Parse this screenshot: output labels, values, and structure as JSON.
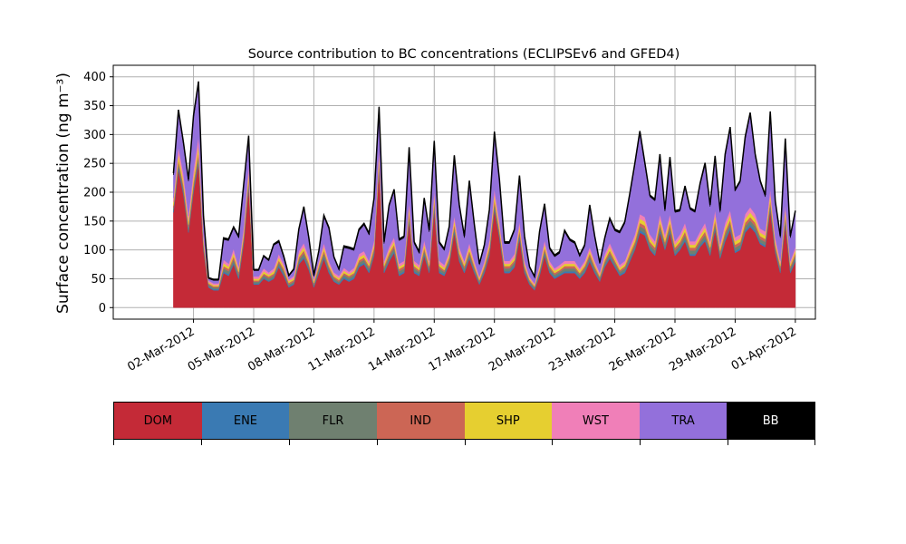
{
  "chart_data": {
    "type": "area",
    "stacked": true,
    "title": "Source contribution to BC concentrations (ECLIPSEv6 and GFED4)",
    "ylabel": "Surface concentration (ng m⁻³)",
    "ylim": [
      -20,
      420
    ],
    "yticks": [
      0,
      50,
      100,
      150,
      200,
      250,
      300,
      350,
      400
    ],
    "xlim": [
      "2012-02-27",
      "2012-04-02"
    ],
    "xticks": [
      "2012-03-02",
      "2012-03-05",
      "2012-03-08",
      "2012-03-11",
      "2012-03-14",
      "2012-03-17",
      "2012-03-20",
      "2012-03-23",
      "2012-03-26",
      "2012-03-29",
      "2012-04-01"
    ],
    "xticklabels": [
      "02-Mar-2012",
      "05-Mar-2012",
      "08-Mar-2012",
      "11-Mar-2012",
      "14-Mar-2012",
      "17-Mar-2012",
      "20-Mar-2012",
      "23-Mar-2012",
      "26-Mar-2012",
      "29-Mar-2012",
      "01-Apr-2012"
    ],
    "grid": true,
    "legend_placement": "colorbar below plot",
    "x": [
      "2012-03-01 00:00",
      "2012-03-01 06:00",
      "2012-03-01 12:00",
      "2012-03-01 18:00",
      "2012-03-02 00:00",
      "2012-03-02 06:00",
      "2012-03-02 12:00",
      "2012-03-02 18:00",
      "2012-03-03 00:00",
      "2012-03-03 06:00",
      "2012-03-03 12:00",
      "2012-03-03 18:00",
      "2012-03-04 00:00",
      "2012-03-04 06:00",
      "2012-03-04 12:00",
      "2012-03-04 18:00",
      "2012-03-05 00:00",
      "2012-03-05 06:00",
      "2012-03-05 12:00",
      "2012-03-05 18:00",
      "2012-03-06 00:00",
      "2012-03-06 06:00",
      "2012-03-06 12:00",
      "2012-03-06 18:00",
      "2012-03-07 00:00",
      "2012-03-07 06:00",
      "2012-03-07 12:00",
      "2012-03-07 18:00",
      "2012-03-08 00:00",
      "2012-03-08 06:00",
      "2012-03-08 12:00",
      "2012-03-08 18:00",
      "2012-03-09 00:00",
      "2012-03-09 06:00",
      "2012-03-09 12:00",
      "2012-03-09 18:00",
      "2012-03-10 00:00",
      "2012-03-10 06:00",
      "2012-03-10 12:00",
      "2012-03-10 18:00",
      "2012-03-11 00:00",
      "2012-03-11 06:00",
      "2012-03-11 12:00",
      "2012-03-11 18:00",
      "2012-03-12 00:00",
      "2012-03-12 06:00",
      "2012-03-12 12:00",
      "2012-03-12 18:00",
      "2012-03-13 00:00",
      "2012-03-13 06:00",
      "2012-03-13 12:00",
      "2012-03-13 18:00",
      "2012-03-14 00:00",
      "2012-03-14 06:00",
      "2012-03-14 12:00",
      "2012-03-14 18:00",
      "2012-03-15 00:00",
      "2012-03-15 06:00",
      "2012-03-15 12:00",
      "2012-03-15 18:00",
      "2012-03-16 00:00",
      "2012-03-16 06:00",
      "2012-03-16 12:00",
      "2012-03-16 18:00",
      "2012-03-17 00:00",
      "2012-03-17 06:00",
      "2012-03-17 12:00",
      "2012-03-17 18:00",
      "2012-03-18 00:00",
      "2012-03-18 06:00",
      "2012-03-18 12:00",
      "2012-03-18 18:00",
      "2012-03-19 00:00",
      "2012-03-19 06:00",
      "2012-03-19 12:00",
      "2012-03-19 18:00",
      "2012-03-20 00:00",
      "2012-03-20 06:00",
      "2012-03-20 12:00",
      "2012-03-20 18:00",
      "2012-03-21 00:00",
      "2012-03-21 06:00",
      "2012-03-21 12:00",
      "2012-03-21 18:00",
      "2012-03-22 00:00",
      "2012-03-22 06:00",
      "2012-03-22 12:00",
      "2012-03-22 18:00",
      "2012-03-23 00:00",
      "2012-03-23 06:00",
      "2012-03-23 12:00",
      "2012-03-23 18:00",
      "2012-03-24 00:00",
      "2012-03-24 06:00",
      "2012-03-24 12:00",
      "2012-03-24 18:00",
      "2012-03-25 00:00",
      "2012-03-25 06:00",
      "2012-03-25 12:00",
      "2012-03-25 18:00",
      "2012-03-26 00:00",
      "2012-03-26 06:00",
      "2012-03-26 12:00",
      "2012-03-26 18:00",
      "2012-03-27 00:00",
      "2012-03-27 06:00",
      "2012-03-27 12:00",
      "2012-03-27 18:00",
      "2012-03-28 00:00",
      "2012-03-28 06:00",
      "2012-03-28 12:00",
      "2012-03-28 18:00",
      "2012-03-29 00:00",
      "2012-03-29 06:00",
      "2012-03-29 12:00",
      "2012-03-29 18:00",
      "2012-03-30 00:00",
      "2012-03-30 06:00",
      "2012-03-30 12:00",
      "2012-03-30 18:00",
      "2012-03-31 00:00",
      "2012-03-31 06:00",
      "2012-03-31 12:00",
      "2012-03-31 18:00",
      "2012-04-01 00:00"
    ],
    "series": [
      {
        "name": "DOM",
        "color": "#c42a37",
        "values": [
          165,
          240,
          195,
          130,
          200,
          250,
          100,
          35,
          30,
          30,
          60,
          55,
          75,
          50,
          110,
          210,
          40,
          40,
          50,
          45,
          50,
          70,
          55,
          35,
          40,
          75,
          85,
          65,
          35,
          60,
          85,
          60,
          45,
          40,
          50,
          45,
          50,
          70,
          75,
          60,
          90,
          240,
          60,
          80,
          95,
          55,
          60,
          150,
          60,
          55,
          90,
          60,
          170,
          60,
          55,
          75,
          130,
          80,
          60,
          85,
          60,
          40,
          60,
          90,
          170,
          120,
          60,
          60,
          70,
          120,
          60,
          40,
          30,
          55,
          90,
          60,
          50,
          55,
          60,
          60,
          60,
          50,
          60,
          80,
          60,
          45,
          70,
          85,
          70,
          55,
          60,
          80,
          100,
          130,
          125,
          100,
          90,
          130,
          100,
          130,
          90,
          100,
          115,
          90,
          90,
          105,
          115,
          90,
          135,
          85,
          115,
          135,
          95,
          100,
          130,
          140,
          130,
          110,
          105,
          170,
          95,
          60,
          145,
          60,
          80
        ]
      },
      {
        "name": "ENE",
        "color": "#3a7ab3",
        "values": [
          3,
          4,
          4,
          3,
          4,
          5,
          3,
          2,
          2,
          2,
          3,
          3,
          3,
          3,
          3,
          4,
          2,
          2,
          2,
          2,
          2,
          3,
          3,
          2,
          2,
          3,
          3,
          3,
          2,
          3,
          3,
          3,
          2,
          2,
          3,
          3,
          3,
          3,
          3,
          3,
          3,
          4,
          3,
          3,
          3,
          3,
          3,
          4,
          3,
          3,
          3,
          3,
          4,
          3,
          3,
          3,
          4,
          3,
          3,
          3,
          3,
          2,
          3,
          3,
          4,
          3,
          3,
          3,
          3,
          4,
          3,
          2,
          2,
          3,
          3,
          3,
          3,
          3,
          3,
          3,
          3,
          3,
          3,
          3,
          3,
          2,
          3,
          3,
          3,
          3,
          3,
          3,
          3,
          4,
          4,
          3,
          3,
          4,
          3,
          4,
          3,
          3,
          4,
          3,
          3,
          3,
          4,
          3,
          4,
          3,
          4,
          4,
          3,
          3,
          4,
          4,
          4,
          3,
          3,
          4,
          3,
          3,
          4,
          3,
          3
        ]
      },
      {
        "name": "FLR",
        "color": "#6f8070",
        "values": [
          5,
          7,
          7,
          6,
          7,
          8,
          5,
          3,
          3,
          3,
          5,
          5,
          6,
          5,
          6,
          7,
          3,
          3,
          4,
          4,
          4,
          5,
          5,
          3,
          3,
          5,
          6,
          5,
          3,
          5,
          6,
          5,
          4,
          3,
          4,
          4,
          4,
          5,
          5,
          5,
          6,
          7,
          5,
          6,
          6,
          5,
          5,
          7,
          5,
          4,
          6,
          5,
          7,
          5,
          4,
          5,
          6,
          6,
          5,
          6,
          5,
          3,
          5,
          6,
          7,
          6,
          5,
          5,
          5,
          6,
          5,
          3,
          3,
          4,
          6,
          5,
          4,
          4,
          5,
          5,
          5,
          4,
          5,
          6,
          5,
          4,
          5,
          6,
          5,
          4,
          5,
          6,
          6,
          7,
          7,
          6,
          6,
          7,
          6,
          7,
          6,
          6,
          7,
          6,
          6,
          6,
          7,
          6,
          7,
          6,
          7,
          7,
          6,
          6,
          7,
          7,
          7,
          6,
          6,
          7,
          6,
          5,
          7,
          5,
          6
        ]
      },
      {
        "name": "IND",
        "color": "#cc6655",
        "values": [
          4,
          6,
          6,
          5,
          6,
          7,
          4,
          2,
          2,
          2,
          4,
          4,
          5,
          4,
          5,
          6,
          2,
          2,
          3,
          3,
          3,
          4,
          4,
          3,
          3,
          4,
          5,
          4,
          3,
          4,
          5,
          4,
          3,
          3,
          3,
          3,
          3,
          4,
          4,
          4,
          5,
          6,
          4,
          5,
          5,
          4,
          4,
          6,
          4,
          3,
          5,
          4,
          6,
          4,
          3,
          4,
          5,
          5,
          4,
          5,
          4,
          3,
          4,
          5,
          6,
          5,
          4,
          4,
          4,
          5,
          4,
          3,
          2,
          3,
          5,
          4,
          3,
          3,
          4,
          4,
          4,
          3,
          4,
          5,
          4,
          3,
          4,
          5,
          4,
          3,
          4,
          5,
          5,
          6,
          6,
          5,
          5,
          6,
          5,
          6,
          5,
          5,
          6,
          5,
          5,
          5,
          6,
          5,
          6,
          5,
          6,
          6,
          5,
          5,
          6,
          6,
          6,
          5,
          5,
          6,
          5,
          4,
          6,
          4,
          5
        ]
      },
      {
        "name": "SHP",
        "color": "#e6cf30",
        "values": [
          6,
          10,
          9,
          7,
          10,
          12,
          6,
          2,
          2,
          2,
          5,
          4,
          6,
          4,
          7,
          10,
          3,
          3,
          4,
          3,
          4,
          5,
          4,
          3,
          3,
          5,
          6,
          5,
          3,
          4,
          6,
          4,
          3,
          3,
          4,
          3,
          4,
          5,
          5,
          4,
          6,
          10,
          4,
          5,
          6,
          4,
          4,
          8,
          4,
          4,
          6,
          4,
          8,
          4,
          4,
          5,
          7,
          5,
          4,
          6,
          4,
          3,
          4,
          6,
          9,
          7,
          4,
          4,
          5,
          7,
          4,
          3,
          2,
          4,
          6,
          4,
          4,
          4,
          4,
          4,
          4,
          4,
          4,
          5,
          4,
          3,
          5,
          6,
          5,
          4,
          4,
          5,
          6,
          7,
          7,
          6,
          5,
          7,
          6,
          7,
          5,
          6,
          7,
          5,
          5,
          6,
          7,
          5,
          8,
          5,
          7,
          8,
          6,
          6,
          7,
          8,
          7,
          6,
          6,
          9,
          6,
          4,
          8,
          4,
          5
        ]
      },
      {
        "name": "WST",
        "color": "#f07fb8",
        "values": [
          7,
          12,
          11,
          8,
          12,
          15,
          7,
          3,
          3,
          3,
          6,
          5,
          7,
          5,
          9,
          12,
          4,
          4,
          5,
          4,
          5,
          6,
          5,
          3,
          4,
          6,
          7,
          6,
          3,
          5,
          7,
          5,
          4,
          4,
          5,
          4,
          5,
          6,
          6,
          5,
          7,
          12,
          5,
          6,
          7,
          5,
          5,
          9,
          5,
          5,
          7,
          5,
          10,
          5,
          5,
          6,
          8,
          6,
          5,
          7,
          5,
          3,
          5,
          7,
          10,
          8,
          5,
          5,
          6,
          8,
          5,
          3,
          3,
          5,
          7,
          5,
          4,
          5,
          5,
          5,
          5,
          4,
          5,
          6,
          5,
          4,
          6,
          7,
          6,
          5,
          5,
          6,
          7,
          8,
          8,
          7,
          6,
          8,
          7,
          8,
          6,
          7,
          8,
          6,
          6,
          7,
          8,
          6,
          9,
          6,
          8,
          9,
          7,
          7,
          8,
          9,
          8,
          7,
          7,
          10,
          7,
          5,
          9,
          5,
          6
        ]
      },
      {
        "name": "TRA",
        "color": "#9370db",
        "values": [
          40,
          60,
          50,
          60,
          90,
          90,
          30,
          3,
          5,
          5,
          35,
          40,
          35,
          50,
          70,
          45,
          10,
          10,
          20,
          20,
          40,
          20,
          10,
          5,
          10,
          35,
          60,
          30,
          5,
          15,
          45,
          55,
          25,
          10,
          35,
          40,
          30,
          40,
          45,
          45,
          70,
          65,
          30,
          70,
          80,
          40,
          40,
          90,
          30,
          20,
          70,
          50,
          80,
          30,
          25,
          40,
          100,
          70,
          40,
          105,
          60,
          20,
          25,
          50,
          95,
          70,
          30,
          30,
          40,
          75,
          40,
          15,
          10,
          55,
          60,
          20,
          20,
          20,
          50,
          35,
          30,
          20,
          25,
          70,
          40,
          15,
          25,
          40,
          40,
          55,
          65,
          90,
          120,
          140,
          90,
          65,
          70,
          100,
          40,
          95,
          50,
          40,
          60,
          55,
          50,
          80,
          100,
          60,
          90,
          55,
          115,
          140,
          80,
          90,
          130,
          160,
          100,
          80,
          60,
          130,
          60,
          40,
          110,
          40,
          60
        ]
      },
      {
        "name": "BB",
        "color": "#000000",
        "values": [
          3,
          4,
          4,
          3,
          4,
          5,
          3,
          2,
          2,
          2,
          3,
          3,
          3,
          3,
          3,
          4,
          2,
          2,
          2,
          2,
          2,
          3,
          3,
          2,
          2,
          3,
          3,
          3,
          2,
          3,
          3,
          3,
          2,
          2,
          3,
          3,
          3,
          3,
          3,
          3,
          3,
          4,
          3,
          3,
          3,
          3,
          3,
          4,
          3,
          3,
          3,
          3,
          4,
          3,
          3,
          3,
          4,
          3,
          3,
          3,
          3,
          2,
          3,
          3,
          4,
          3,
          3,
          3,
          3,
          4,
          3,
          2,
          2,
          3,
          3,
          3,
          3,
          3,
          3,
          3,
          3,
          3,
          3,
          3,
          3,
          2,
          3,
          3,
          3,
          3,
          3,
          3,
          3,
          4,
          4,
          3,
          3,
          4,
          3,
          4,
          3,
          3,
          4,
          3,
          3,
          3,
          4,
          3,
          4,
          3,
          4,
          4,
          3,
          3,
          4,
          4,
          4,
          3,
          3,
          4,
          3,
          3,
          4,
          3,
          3
        ]
      }
    ]
  }
}
